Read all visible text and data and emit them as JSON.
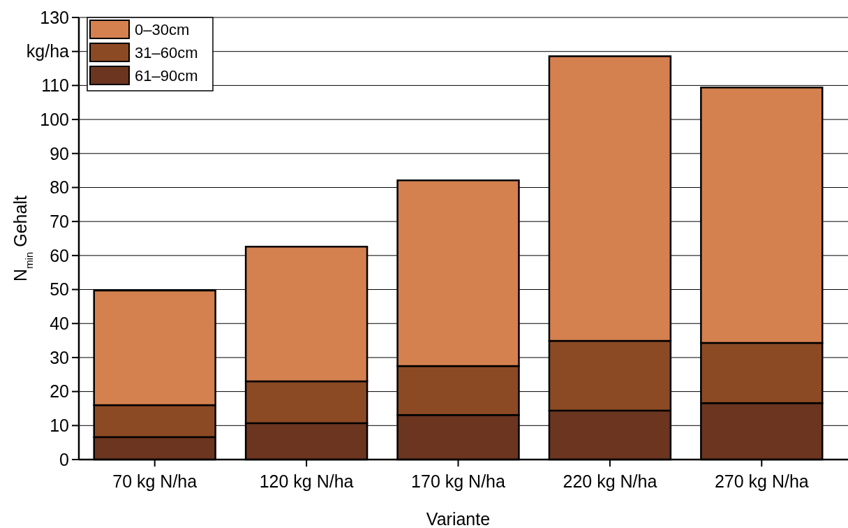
{
  "chart_data": {
    "type": "bar",
    "stacked": true,
    "xlabel": "Variante",
    "ylabel": "N$_{min}$ Gehalt",
    "categories": [
      "70 kg N/ha",
      "120 kg N/ha",
      "170 kg N/ha",
      "220 kg N/ha",
      "270 kg N/ha"
    ],
    "series": [
      {
        "name": "61–90cm",
        "color": "#6b3520",
        "values": [
          6.6,
          10.7,
          13.1,
          14.4,
          16.6
        ]
      },
      {
        "name": "31–60cm",
        "color": "#8b4a24",
        "values": [
          9.4,
          12.3,
          14.4,
          20.5,
          17.7
        ]
      },
      {
        "name": "0–30cm",
        "color": "#d4804f",
        "values": [
          33.7,
          39.6,
          54.6,
          83.7,
          75.1
        ]
      }
    ],
    "ylim": [
      0,
      130
    ],
    "yticks": [
      0,
      10,
      20,
      30,
      40,
      50,
      60,
      70,
      80,
      90,
      100,
      110,
      {
        "value": 120,
        "label": "kg/ha"
      },
      130
    ],
    "grid": "y",
    "legend": "top left"
  }
}
